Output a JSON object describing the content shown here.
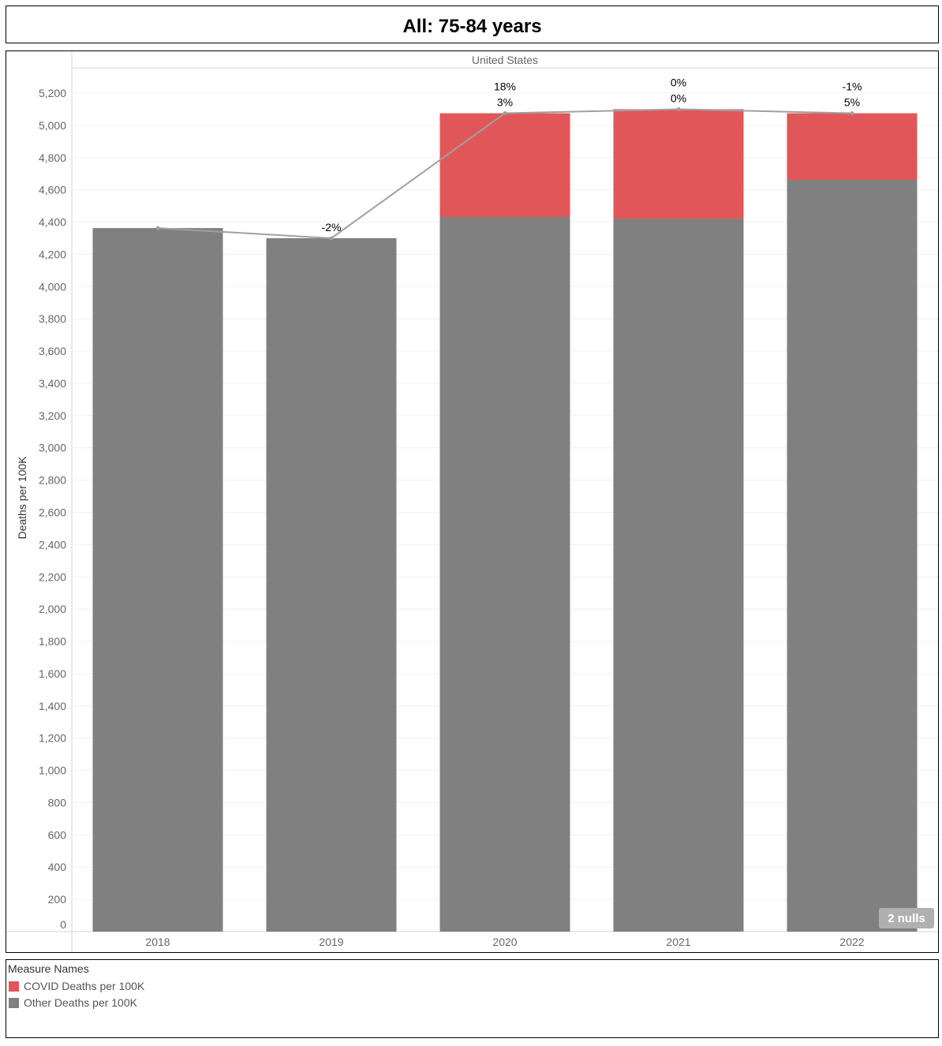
{
  "header": {
    "title": "All: 75-84 years"
  },
  "chart_data": {
    "type": "bar",
    "stacked": true,
    "panel_label": "United States",
    "ylabel": "Deaths per 100K",
    "ylim": [
      0,
      5300
    ],
    "yticks": [
      0,
      200,
      400,
      600,
      800,
      1000,
      1200,
      1400,
      1600,
      1800,
      2000,
      2200,
      2400,
      2600,
      2800,
      3000,
      3200,
      3400,
      3600,
      3800,
      4000,
      4200,
      4400,
      4600,
      4800,
      5000,
      5200
    ],
    "categories": [
      "2018",
      "2019",
      "2020",
      "2021",
      "2022"
    ],
    "series": [
      {
        "name": "Other Deaths per 100K",
        "color": "#808080",
        "values": [
          4363,
          4300,
          4432,
          4420,
          4662
        ]
      },
      {
        "name": "COVID Deaths per 100K",
        "color": "#E15759",
        "values": [
          0,
          0,
          643,
          680,
          413
        ]
      }
    ],
    "line": {
      "color": "#a0a0a0",
      "values": [
        4363,
        4300,
        5075,
        5100,
        5075
      ]
    },
    "data_labels": [
      {
        "category": "2018",
        "top": "",
        "bottom": ""
      },
      {
        "category": "2019",
        "top": "",
        "bottom": "-2%"
      },
      {
        "category": "2020",
        "top": "18%",
        "bottom": "3%"
      },
      {
        "category": "2021",
        "top": "0%",
        "bottom": "0%"
      },
      {
        "category": "2022",
        "top": "-1%",
        "bottom": "5%"
      }
    ],
    "nulls_badge": "2 nulls",
    "grid": true
  },
  "legend": {
    "title": "Measure Names",
    "items": [
      {
        "label": "COVID Deaths per 100K",
        "color": "#E15759"
      },
      {
        "label": "Other Deaths per 100K",
        "color": "#808080"
      }
    ]
  }
}
